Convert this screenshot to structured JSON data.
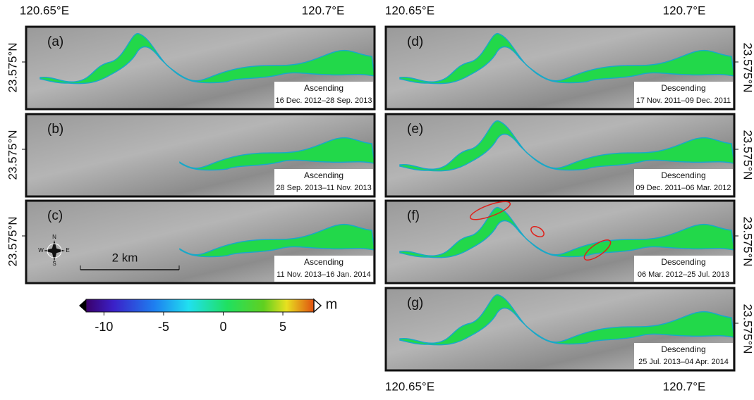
{
  "axes": {
    "top_left": [
      "120.65°E",
      "120.7°E"
    ],
    "top_right": [
      "120.65°E",
      "120.7°E"
    ],
    "bottom_right": [
      "120.65°E",
      "120.7°E"
    ],
    "latitude": "23.575°N"
  },
  "panels": [
    {
      "label": "(a)",
      "orbit": "Ascending",
      "dates": "16 Dec. 2012–28 Sep. 2013"
    },
    {
      "label": "(b)",
      "orbit": "Ascending",
      "dates": "28 Sep. 2013–11 Nov. 2013"
    },
    {
      "label": "(c)",
      "orbit": "Ascending",
      "dates": "11 Nov. 2013–16 Jan. 2014"
    },
    {
      "label": "(d)",
      "orbit": "Descending",
      "dates": "17 Nov. 2011–09 Dec. 2011"
    },
    {
      "label": "(e)",
      "orbit": "Descending",
      "dates": "09 Dec. 2011–06 Mar. 2012"
    },
    {
      "label": "(f)",
      "orbit": "Descending",
      "dates": "06 Mar. 2012–25 Jul. 2013"
    },
    {
      "label": "(g)",
      "orbit": "Descending",
      "dates": "25 Jul. 2013–04 Apr. 2014"
    }
  ],
  "scale_bar": "2 km",
  "compass": {
    "n": "N",
    "e": "E",
    "s": "S",
    "w": "W"
  },
  "colorbar": {
    "unit": "m",
    "range": [
      -11.5,
      7.6
    ],
    "ticks": [
      -10,
      -5,
      0,
      5
    ]
  }
}
